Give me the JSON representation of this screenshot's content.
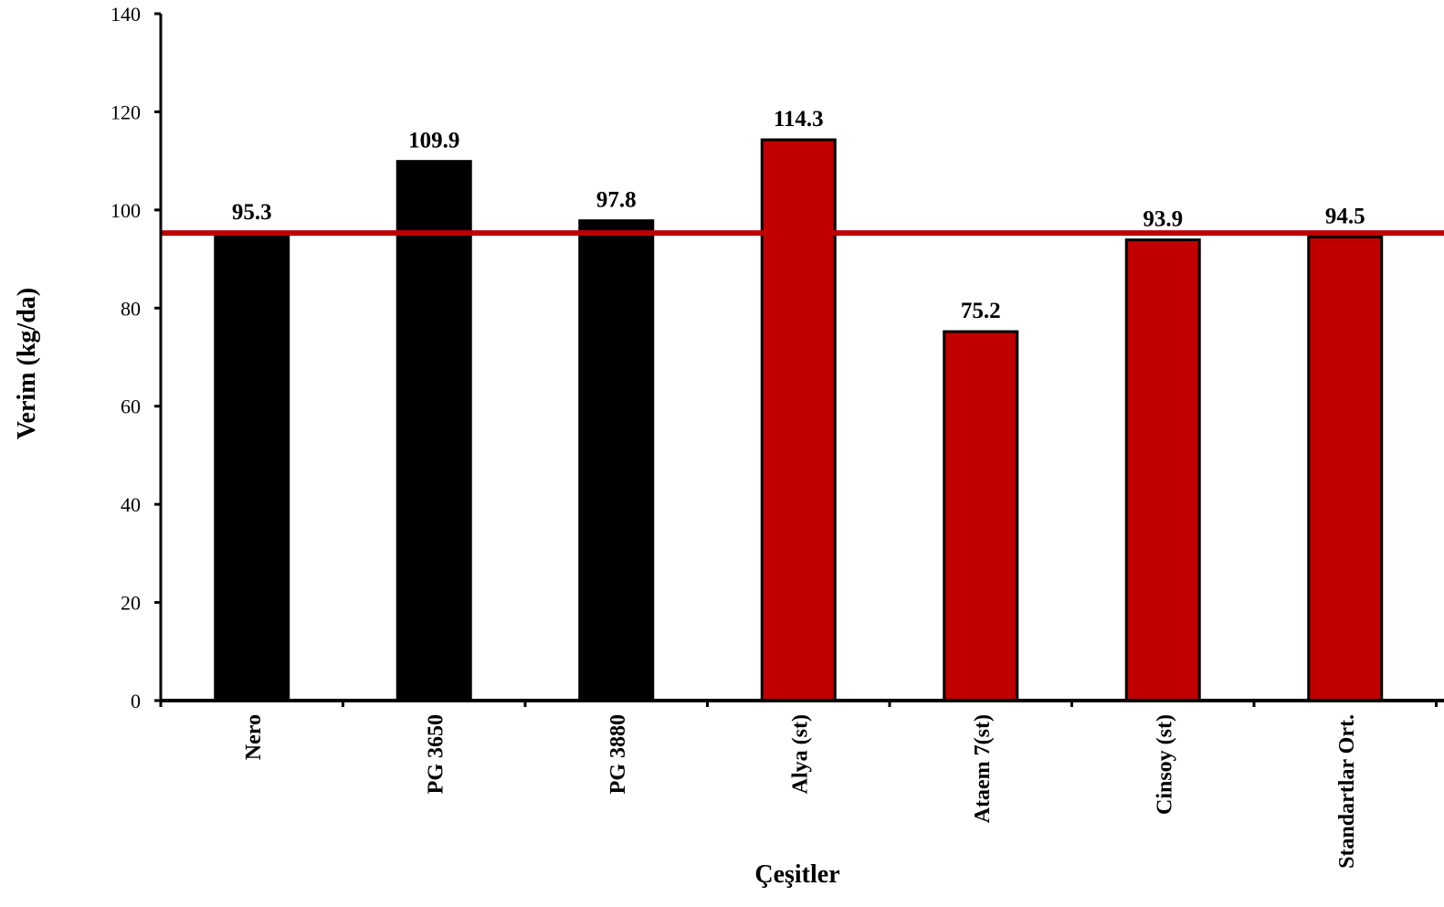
{
  "chart_data": {
    "type": "bar",
    "categories": [
      "Nero",
      "PG 3650",
      "PG 3880",
      "Alya (st)",
      "Ataem 7(st)",
      "Cinsoy (st)",
      "Standartlar Ort."
    ],
    "values": [
      95.3,
      109.9,
      97.8,
      114.3,
      75.2,
      93.9,
      94.5
    ],
    "bar_colors": [
      "#000000",
      "#000000",
      "#000000",
      "#c00000",
      "#c00000",
      "#c00000",
      "#c00000"
    ],
    "reference_line": {
      "value": 95.3,
      "color": "#c00000"
    },
    "title": "",
    "xlabel": "Çeşitler",
    "ylabel": "Verim (kg/da)",
    "ylim": [
      0,
      140
    ],
    "yticks": [
      0,
      20,
      40,
      60,
      80,
      100,
      120,
      140
    ],
    "grid": false,
    "legend": "none"
  }
}
